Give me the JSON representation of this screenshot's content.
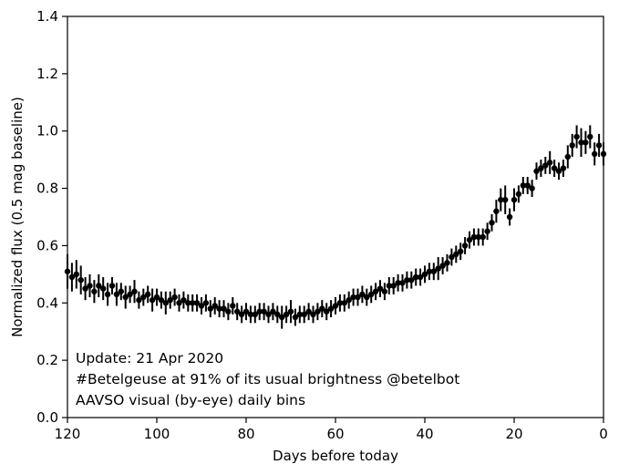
{
  "chart_data": {
    "type": "scatter",
    "title": "",
    "xlabel": "Days before today",
    "ylabel": "Normalized flux (0.5 mag baseline)",
    "xlim": [
      120,
      0
    ],
    "ylim": [
      0.0,
      1.4
    ],
    "x_ticks": [
      120,
      100,
      80,
      60,
      40,
      20,
      0
    ],
    "x_tick_labels": [
      "120",
      "100",
      "80",
      "60",
      "40",
      "20",
      "0"
    ],
    "y_ticks": [
      0.0,
      0.2,
      0.4,
      0.6,
      0.8,
      1.0,
      1.2,
      1.4
    ],
    "y_tick_labels": [
      "0.0",
      "0.2",
      "0.4",
      "0.6",
      "0.8",
      "1.0",
      "1.2",
      "1.4"
    ],
    "grid": false,
    "legend": "none",
    "marker_color": "#000000",
    "annotation": [
      "Update: 21 Apr 2020",
      "#Betelgeuse at 91% of its usual brightness @betelbot",
      "AAVSO visual (by-eye) daily bins"
    ],
    "series": [
      {
        "x": [
          120,
          119,
          118,
          117,
          116,
          115,
          114,
          113,
          112,
          111,
          110,
          109,
          108,
          107,
          106,
          105,
          104,
          103,
          102,
          101,
          100,
          99,
          98,
          97,
          96,
          95,
          94,
          93,
          92,
          91,
          90,
          89,
          88,
          87,
          86,
          85,
          84,
          83,
          82,
          81,
          80,
          79,
          78,
          77,
          76,
          75,
          74,
          73,
          72,
          71,
          70,
          69,
          68,
          67,
          66,
          65,
          64,
          63,
          62,
          61,
          60,
          59,
          58,
          57,
          56,
          55,
          54,
          53,
          52,
          51,
          50,
          49,
          48,
          47,
          46,
          45,
          44,
          43,
          42,
          41,
          40,
          39,
          38,
          37,
          36,
          35,
          34,
          33,
          32,
          31,
          30,
          29,
          28,
          27,
          26,
          25,
          24,
          23,
          22,
          21,
          20,
          19,
          18,
          17,
          16,
          15,
          14,
          13,
          12,
          11,
          10,
          9,
          8,
          7,
          6,
          5,
          4,
          3,
          2,
          1,
          0
        ],
        "y": [
          0.51,
          0.49,
          0.5,
          0.48,
          0.45,
          0.46,
          0.44,
          0.46,
          0.45,
          0.43,
          0.46,
          0.43,
          0.44,
          0.42,
          0.43,
          0.44,
          0.41,
          0.42,
          0.43,
          0.41,
          0.42,
          0.41,
          0.4,
          0.41,
          0.42,
          0.4,
          0.41,
          0.4,
          0.4,
          0.4,
          0.39,
          0.4,
          0.38,
          0.39,
          0.38,
          0.38,
          0.37,
          0.39,
          0.37,
          0.36,
          0.37,
          0.36,
          0.36,
          0.37,
          0.37,
          0.36,
          0.37,
          0.36,
          0.35,
          0.36,
          0.37,
          0.35,
          0.36,
          0.36,
          0.37,
          0.36,
          0.37,
          0.38,
          0.37,
          0.38,
          0.39,
          0.4,
          0.4,
          0.41,
          0.42,
          0.42,
          0.43,
          0.42,
          0.43,
          0.44,
          0.45,
          0.44,
          0.46,
          0.46,
          0.47,
          0.47,
          0.48,
          0.48,
          0.49,
          0.49,
          0.5,
          0.51,
          0.51,
          0.52,
          0.53,
          0.54,
          0.56,
          0.57,
          0.58,
          0.6,
          0.62,
          0.63,
          0.63,
          0.63,
          0.65,
          0.68,
          0.72,
          0.76,
          0.76,
          0.7,
          0.76,
          0.78,
          0.81,
          0.81,
          0.8,
          0.86,
          0.87,
          0.88,
          0.89,
          0.87,
          0.86,
          0.87,
          0.91,
          0.95,
          0.98,
          0.96,
          0.96,
          0.98,
          0.92,
          0.95,
          0.92
        ],
        "yerr": [
          0.06,
          0.05,
          0.05,
          0.05,
          0.04,
          0.04,
          0.04,
          0.04,
          0.04,
          0.04,
          0.03,
          0.04,
          0.03,
          0.04,
          0.03,
          0.04,
          0.03,
          0.03,
          0.03,
          0.04,
          0.03,
          0.03,
          0.04,
          0.03,
          0.03,
          0.03,
          0.03,
          0.03,
          0.03,
          0.03,
          0.03,
          0.03,
          0.03,
          0.03,
          0.03,
          0.03,
          0.03,
          0.03,
          0.03,
          0.03,
          0.03,
          0.03,
          0.03,
          0.03,
          0.03,
          0.03,
          0.03,
          0.03,
          0.04,
          0.03,
          0.04,
          0.03,
          0.03,
          0.03,
          0.03,
          0.03,
          0.03,
          0.03,
          0.03,
          0.03,
          0.03,
          0.03,
          0.03,
          0.03,
          0.03,
          0.03,
          0.03,
          0.03,
          0.03,
          0.03,
          0.03,
          0.03,
          0.03,
          0.03,
          0.03,
          0.03,
          0.03,
          0.03,
          0.03,
          0.03,
          0.03,
          0.03,
          0.03,
          0.04,
          0.03,
          0.03,
          0.03,
          0.03,
          0.03,
          0.03,
          0.03,
          0.03,
          0.03,
          0.03,
          0.03,
          0.03,
          0.04,
          0.04,
          0.05,
          0.03,
          0.04,
          0.03,
          0.03,
          0.03,
          0.03,
          0.03,
          0.03,
          0.03,
          0.04,
          0.03,
          0.03,
          0.03,
          0.04,
          0.04,
          0.04,
          0.05,
          0.04,
          0.04,
          0.04,
          0.04,
          0.04
        ]
      }
    ]
  }
}
